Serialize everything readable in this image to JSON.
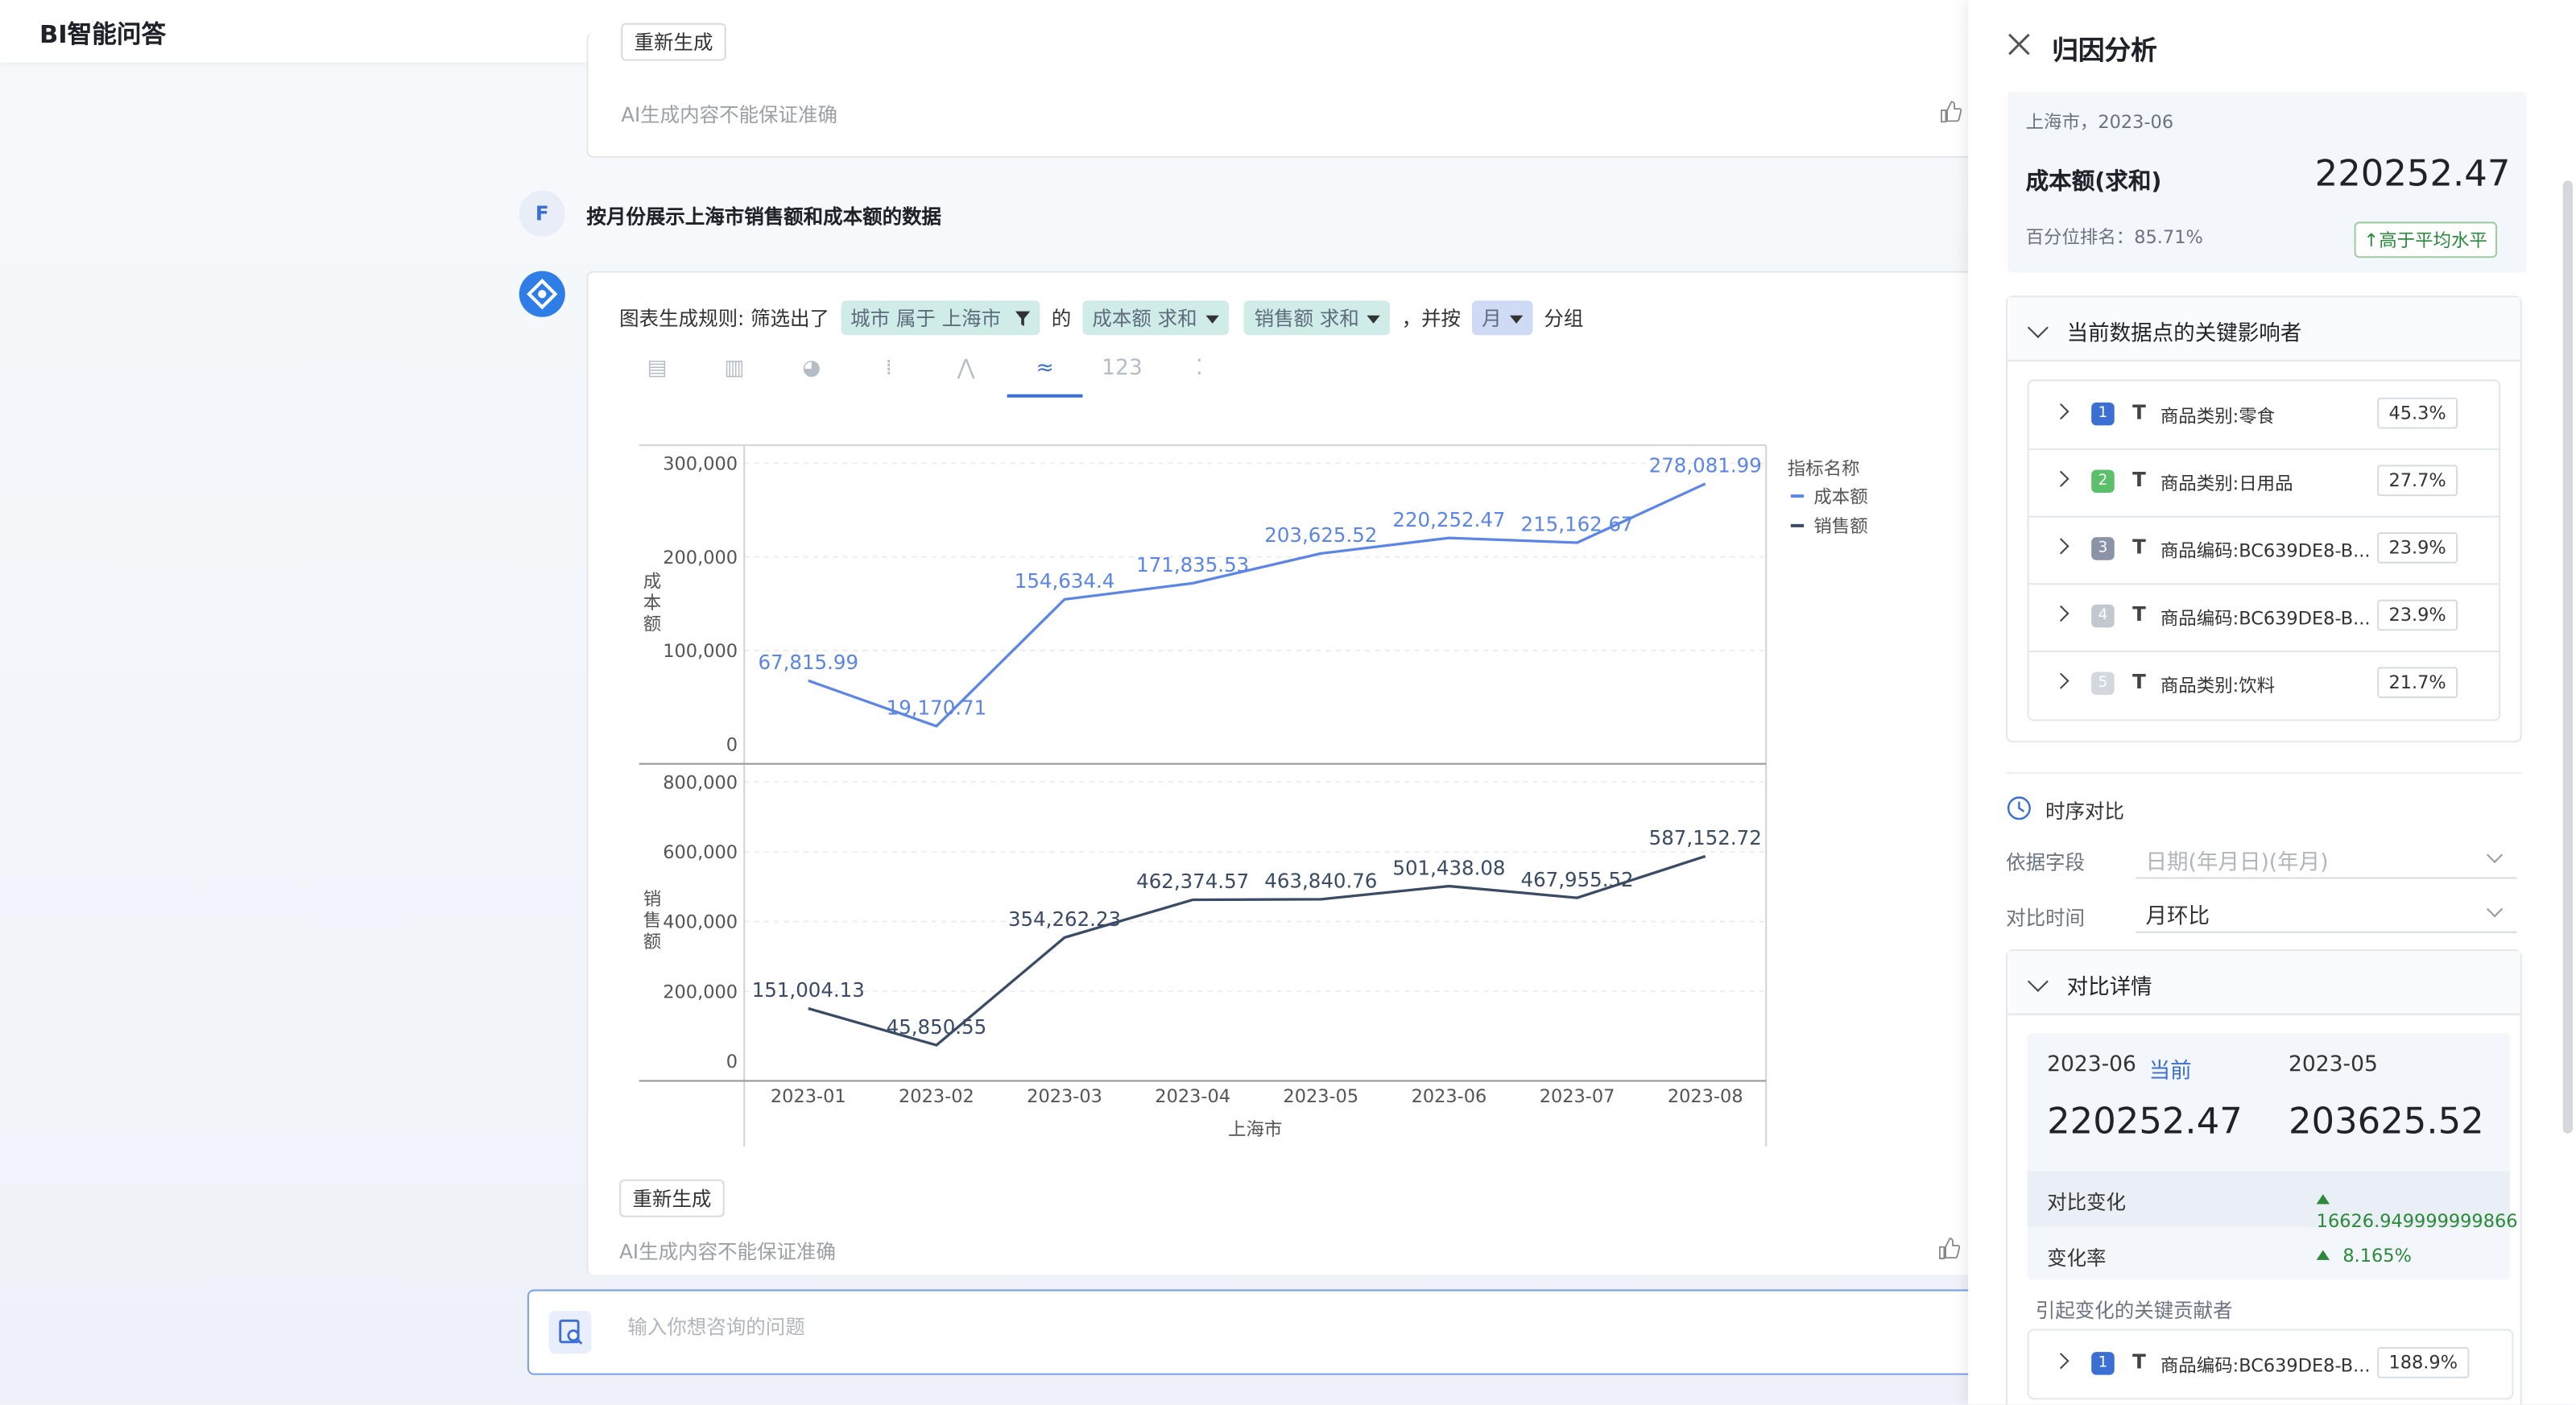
{
  "app": {
    "title": "BI智能问答"
  },
  "prev_answer": {
    "regenerate": "重新生成",
    "disclaimer": "AI生成内容不能保证准确"
  },
  "question": {
    "avatar": "F",
    "text": "按月份展示上海市销售额和成本额的数据"
  },
  "answer": {
    "rule_prefix": "图表生成规则: 筛选出了",
    "filter_tag": "城市 属于 上海市",
    "of_text": "的",
    "metric_tag_1": "成本额 求和",
    "metric_tag_2": "销售额 求和",
    "group_text": "，并按",
    "group_tag": "月",
    "group_suffix": "分组",
    "regenerate": "重新生成",
    "disclaimer": "AI生成内容不能保证准确"
  },
  "chart_tabs": [
    {
      "icon": "table-icon"
    },
    {
      "icon": "bar-chart-icon"
    },
    {
      "icon": "pie-chart-icon"
    },
    {
      "icon": "column-icon"
    },
    {
      "icon": "line-chart-icon"
    },
    {
      "icon": "dual-line-icon",
      "active": true
    },
    {
      "icon": "number-icon"
    },
    {
      "icon": "scatter-icon"
    }
  ],
  "chart_data": {
    "type": "line",
    "categories": [
      "2023-01",
      "2023-02",
      "2023-03",
      "2023-04",
      "2023-05",
      "2023-06",
      "2023-07",
      "2023-08"
    ],
    "xlabel": "上海市",
    "legend_title": "指标名称",
    "legend_placement": "top-right",
    "series": [
      {
        "name": "成本额",
        "axis_label": "成本额",
        "color": "#5b85e6",
        "values": [
          67815.99,
          19170.71,
          154634.4,
          171835.53,
          203625.52,
          220252.47,
          215162.67,
          278081.99
        ],
        "labels": [
          "67,815.99",
          "19,170.71",
          "154,634.4",
          "171,835.53",
          "203,625.52",
          "220,252.47",
          "215,162.67",
          "278,081.99"
        ],
        "ylim": [
          0,
          300000
        ],
        "ticks": [
          "0",
          "100,000",
          "200,000",
          "300,000"
        ]
      },
      {
        "name": "销售额",
        "axis_label": "销售额",
        "color": "#3a4b66",
        "values": [
          151004.13,
          45850.55,
          354262.23,
          462374.57,
          463840.76,
          501438.08,
          467955.52,
          587152.72
        ],
        "labels": [
          "151,004.13",
          "45,850.55",
          "354,262.23",
          "462,374.57",
          "463,840.76",
          "501,438.08",
          "467,955.52",
          "587,152.72"
        ],
        "ylim": [
          0,
          800000
        ],
        "ticks": [
          "0",
          "200,000",
          "400,000",
          "600,000",
          "800,000"
        ]
      }
    ]
  },
  "input": {
    "placeholder": "输入你想咨询的问题"
  },
  "panel": {
    "title": "归因分析",
    "summary": {
      "location": "上海市，2023-06",
      "metric": "成本额(求和)",
      "value": "220252.47",
      "rank": "百分位排名：85.71%",
      "badge": "高于平均水平"
    },
    "influencers": {
      "title": "当前数据点的关键影响者",
      "items": [
        {
          "rank": "1",
          "color": "#3b6fd4",
          "name": "商品类别:零食",
          "pct": "45.3%"
        },
        {
          "rank": "2",
          "color": "#5cbf6a",
          "name": "商品类别:日用品",
          "pct": "27.7%"
        },
        {
          "rank": "3",
          "color": "#8a94a6",
          "name": "商品编码:BC639DE8-B...",
          "pct": "23.9%"
        },
        {
          "rank": "4",
          "color": "#c2c7d0",
          "name": "商品编码:BC639DE8-B...",
          "pct": "23.9%"
        },
        {
          "rank": "5",
          "color": "#d3d7de",
          "name": "商品类别:饮料",
          "pct": "21.7%"
        }
      ]
    },
    "time_compare": {
      "title": "时序对比",
      "field_label": "依据字段",
      "field_placeholder": "日期(年月日)(年月)",
      "time_label": "对比时间",
      "time_value": "月环比"
    },
    "compare_detail": {
      "title": "对比详情",
      "current_date": "2023-06",
      "current_tag": "当前",
      "current_value": "220252.47",
      "prev_date": "2023-05",
      "prev_value": "203625.52",
      "change_label": "对比变化",
      "change_value": "16626.949999999866",
      "rate_label": "变化率",
      "rate_value": "8.165%",
      "contrib_title": "引起变化的关键贡献者",
      "contrib": {
        "rank": "1",
        "color": "#3b6fd4",
        "name": "商品编码:BC639DE8-B...",
        "pct": "188.9%"
      }
    }
  }
}
